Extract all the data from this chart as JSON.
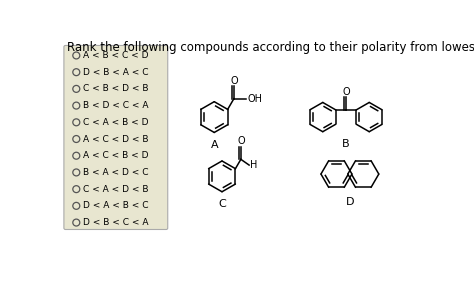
{
  "title": "Rank the following compounds according to their polarity from lowest to highest",
  "title_fontsize": 8.5,
  "background_color": "#ffffff",
  "box_color": "#e8e6d0",
  "box_options": [
    "A < B < C < D",
    "D < B < A < C",
    "C < B < D < B",
    "B < D < C < A",
    "C < A < B < D",
    "A < C < D < B",
    "A < C < B < D",
    "B < A < D < C",
    "C < A < D < B",
    "D < A < B < C",
    "D < B < C < A"
  ],
  "label_fontsize": 8
}
